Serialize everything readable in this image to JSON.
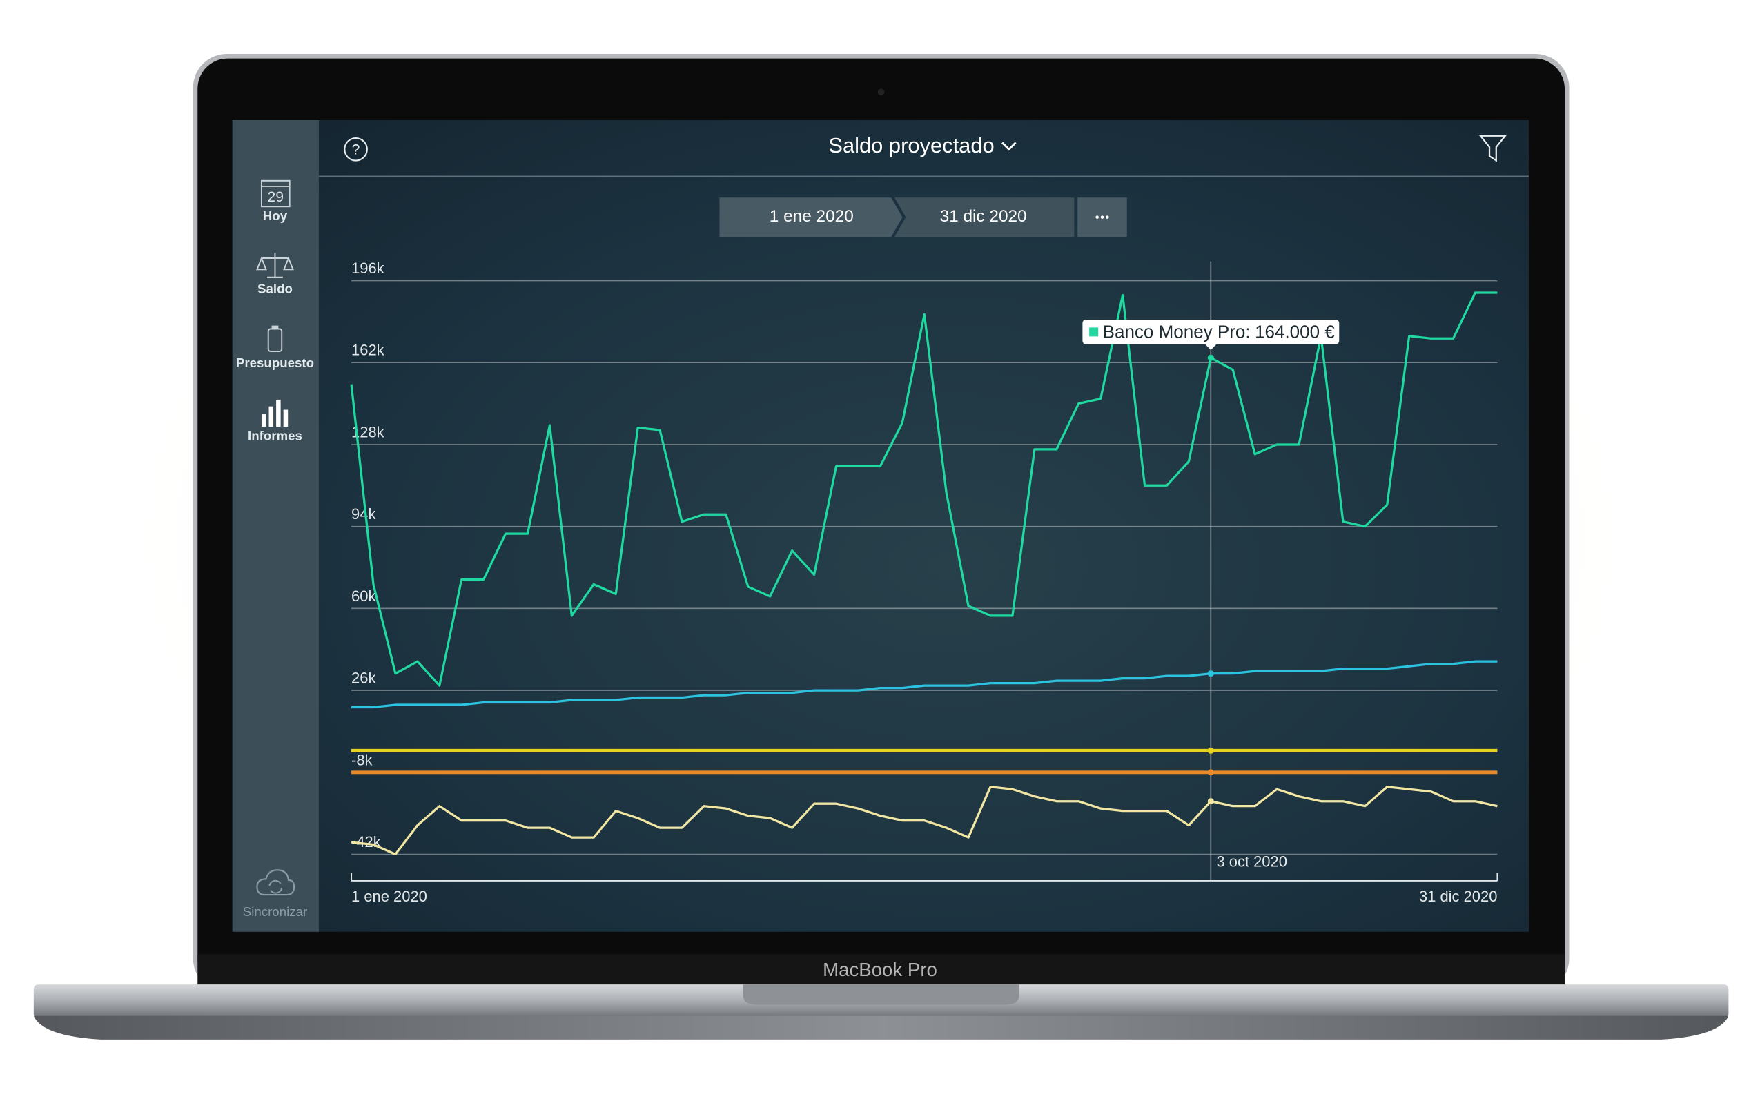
{
  "device_label": "MacBook Pro",
  "sidebar": {
    "calendar_day": "29",
    "items": [
      "Hoy",
      "Saldo",
      "Presupuesto",
      "Informes"
    ],
    "sync": "Sincronizar"
  },
  "header": {
    "help": "?",
    "title": "Saldo proyectado"
  },
  "date_range": {
    "start": "1 ene 2020",
    "end": "31 dic 2020"
  },
  "chart_data": {
    "type": "line",
    "grid": true,
    "categories": [
      "1 ene 2020",
      null,
      null,
      null,
      null,
      null,
      null,
      null,
      null,
      null,
      null,
      null,
      null,
      null,
      null,
      null,
      null,
      null,
      null,
      null,
      null,
      null,
      null,
      null,
      null,
      null,
      null,
      null,
      null,
      null,
      null,
      null,
      null,
      null,
      null,
      null,
      null,
      null,
      null,
      "3 oct 2020",
      null,
      null,
      null,
      null,
      null,
      null,
      null,
      null,
      null,
      null,
      null,
      null,
      "31 dic 2020"
    ],
    "ylim": [
      -53000,
      204000
    ],
    "yticks": [
      {
        "value": 196000,
        "label": "196k"
      },
      {
        "value": 162000,
        "label": "162k"
      },
      {
        "value": 128000,
        "label": "128k"
      },
      {
        "value": 94000,
        "label": "94k"
      },
      {
        "value": 60000,
        "label": "60k"
      },
      {
        "value": 26000,
        "label": "26k"
      },
      {
        "value": -8000,
        "label": "-8k"
      },
      {
        "value": -42000,
        "label": "-42k"
      }
    ],
    "series": [
      {
        "name": "Banco Money Pro",
        "color": "#1fd9a1",
        "values": [
          153000,
          70000,
          33000,
          38000,
          28000,
          72000,
          72000,
          91000,
          91000,
          136000,
          57000,
          70000,
          66000,
          135000,
          134000,
          96000,
          99000,
          99000,
          69000,
          65000,
          84000,
          74000,
          119000,
          119000,
          119000,
          137000,
          182000,
          108000,
          61000,
          57000,
          57000,
          126000,
          126000,
          145000,
          147000,
          190000,
          111000,
          111000,
          121000,
          164000,
          159000,
          124000,
          128000,
          128000,
          173000,
          96000,
          94000,
          103000,
          173000,
          172000,
          172000,
          191000,
          191000
        ],
        "value_labels": [
          null,
          null,
          null,
          null,
          null,
          null,
          null,
          null,
          null,
          null,
          null,
          null,
          null,
          null,
          null,
          null,
          null,
          null,
          null,
          null,
          null,
          null,
          null,
          null,
          null,
          null,
          null,
          null,
          null,
          null,
          null,
          null,
          null,
          null,
          null,
          null,
          null,
          null,
          null,
          "164.000 €",
          null,
          null,
          null,
          null,
          null,
          null,
          null,
          null,
          null,
          null,
          null,
          null,
          null
        ]
      },
      {
        "color": "#2bc3e0",
        "values": [
          19000,
          19000,
          20000,
          20000,
          20000,
          20000,
          21000,
          21000,
          21000,
          21000,
          22000,
          22000,
          22000,
          23000,
          23000,
          23000,
          24000,
          24000,
          25000,
          25000,
          25000,
          26000,
          26000,
          26000,
          27000,
          27000,
          28000,
          28000,
          28000,
          29000,
          29000,
          29000,
          30000,
          30000,
          30000,
          31000,
          31000,
          32000,
          32000,
          33000,
          33000,
          34000,
          34000,
          34000,
          34000,
          35000,
          35000,
          35000,
          36000,
          37000,
          37000,
          38000,
          38000
        ]
      },
      {
        "color": "#e5d31f",
        "values": [
          1000,
          1000,
          1000,
          1000,
          1000,
          1000,
          1000,
          1000,
          1000,
          1000,
          1000,
          1000,
          1000,
          1000,
          1000,
          1000,
          1000,
          1000,
          1000,
          1000,
          1000,
          1000,
          1000,
          1000,
          1000,
          1000,
          1000,
          1000,
          1000,
          1000,
          1000,
          1000,
          1000,
          1000,
          1000,
          1000,
          1000,
          1000,
          1000,
          1000,
          1000,
          1000,
          1000,
          1000,
          1000,
          1000,
          1000,
          1000,
          1000,
          1000,
          1000,
          1000,
          1000
        ]
      },
      {
        "color": "#e8892a",
        "values": [
          -8000,
          -8000,
          -8000,
          -8000,
          -8000,
          -8000,
          -8000,
          -8000,
          -8000,
          -8000,
          -8000,
          -8000,
          -8000,
          -8000,
          -8000,
          -8000,
          -8000,
          -8000,
          -8000,
          -8000,
          -8000,
          -8000,
          -8000,
          -8000,
          -8000,
          -8000,
          -8000,
          -8000,
          -8000,
          -8000,
          -8000,
          -8000,
          -8000,
          -8000,
          -8000,
          -8000,
          -8000,
          -8000,
          -8000,
          -8000,
          -8000,
          -8000,
          -8000,
          -8000,
          -8000,
          -8000,
          -8000,
          -8000,
          -8000,
          -8000,
          -8000,
          -8000,
          -8000
        ]
      },
      {
        "color": "#f1e6a2",
        "values": [
          -37000,
          -38000,
          -42000,
          -30000,
          -22000,
          -28000,
          -28000,
          -28000,
          -31000,
          -31000,
          -35000,
          -35000,
          -24000,
          -27000,
          -31000,
          -31000,
          -22000,
          -23000,
          -26000,
          -27000,
          -31000,
          -21000,
          -21000,
          -23000,
          -26000,
          -28000,
          -28000,
          -31000,
          -35000,
          -14000,
          -15000,
          -18000,
          -20000,
          -20000,
          -23000,
          -24000,
          -24000,
          -24000,
          -30000,
          -20000,
          -22000,
          -22000,
          -15000,
          -18000,
          -20000,
          -20000,
          -22000,
          -14000,
          -15000,
          -16000,
          -20000,
          -20000,
          -22000
        ]
      }
    ]
  }
}
